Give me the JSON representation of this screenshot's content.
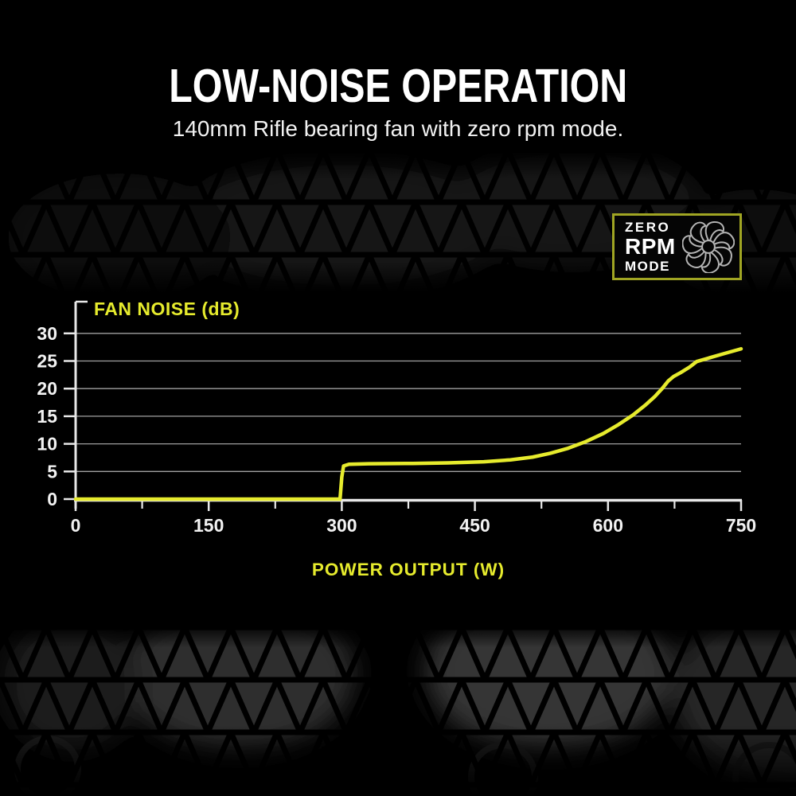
{
  "header": {
    "title": "LOW-NOISE OPERATION",
    "subtitle": "140mm Rifle bearing fan with zero rpm mode."
  },
  "badge": {
    "line1": "ZERO",
    "line2": "RPM",
    "line3": "MODE",
    "icon": "fan-icon",
    "border_color": "#a0a523"
  },
  "chart_data": {
    "type": "line",
    "title": "FAN NOISE (dB)",
    "xlabel": "POWER OUTPUT (W)",
    "ylabel": "FAN NOISE (dB)",
    "xlim": [
      0,
      750
    ],
    "ylim": [
      0,
      32
    ],
    "x_ticks": [
      0,
      150,
      300,
      450,
      600,
      750
    ],
    "x_minor_ticks": [
      75,
      225,
      375,
      525,
      675
    ],
    "y_ticks": [
      0,
      5,
      10,
      15,
      20,
      25,
      30
    ],
    "grid": true,
    "legend_position": "none",
    "series": [
      {
        "name": "fan noise (dB)",
        "color": "#e6eb2d",
        "points": [
          [
            0,
            0
          ],
          [
            290,
            0
          ],
          [
            298,
            0
          ],
          [
            300,
            4
          ],
          [
            302,
            6.0
          ],
          [
            308,
            6.3
          ],
          [
            330,
            6.4
          ],
          [
            380,
            6.45
          ],
          [
            420,
            6.55
          ],
          [
            460,
            6.75
          ],
          [
            490,
            7.1
          ],
          [
            515,
            7.6
          ],
          [
            535,
            8.3
          ],
          [
            555,
            9.2
          ],
          [
            575,
            10.4
          ],
          [
            595,
            11.9
          ],
          [
            612,
            13.5
          ],
          [
            628,
            15.2
          ],
          [
            642,
            17.0
          ],
          [
            653,
            18.6
          ],
          [
            661,
            20.0
          ],
          [
            668,
            21.4
          ],
          [
            674,
            22.2
          ],
          [
            682,
            22.9
          ],
          [
            692,
            23.9
          ],
          [
            700,
            24.9
          ],
          [
            715,
            25.6
          ],
          [
            730,
            26.3
          ],
          [
            750,
            27.2
          ]
        ]
      }
    ]
  },
  "colors": {
    "accent_yellow": "#e6eb2d",
    "grid_line": "#a0a0a0",
    "axis_line": "#e8e8e8",
    "label_white": "#f2f2f2",
    "background": "#000000"
  }
}
